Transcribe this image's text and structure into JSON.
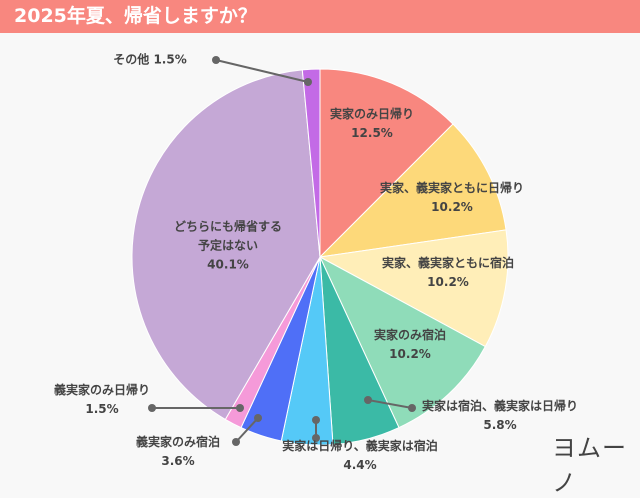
{
  "title": "2025年夏、帰省しますか？",
  "logo": "ヨムーノ",
  "chart_data": {
    "type": "pie",
    "title": "2025年夏、帰省しますか？",
    "start": "top",
    "direction": "clockwise",
    "slices": [
      {
        "label": "実家のみ日帰り",
        "value": 12.5,
        "display": "12.5%",
        "color": "#f8877f"
      },
      {
        "label": "実家、義実家ともに日帰り",
        "value": 10.2,
        "display": "10.2%",
        "color": "#fdd97a"
      },
      {
        "label": "実家、義実家ともに宿泊",
        "value": 10.2,
        "display": "10.2%",
        "color": "#ffeeb8"
      },
      {
        "label": "実家のみ宿泊",
        "value": 10.2,
        "display": "10.2%",
        "color": "#8fdcb9"
      },
      {
        "label": "実家は宿泊、義実家は日帰り",
        "value": 5.8,
        "display": "5.8%",
        "color": "#3bbaa6"
      },
      {
        "label": "実家は日帰り、義実家は宿泊",
        "value": 4.4,
        "display": "4.4%",
        "color": "#55c9f7"
      },
      {
        "label": "義実家のみ宿泊",
        "value": 3.6,
        "display": "3.6%",
        "color": "#4f6ff7"
      },
      {
        "label": "義実家のみ日帰り",
        "value": 1.5,
        "display": "1.5%",
        "color": "#f59ad9"
      },
      {
        "label": "どちらにも帰省する予定はない",
        "value": 40.1,
        "display": "40.1%",
        "color": "#c5a8d6"
      },
      {
        "label": "その他",
        "value": 1.5,
        "display": "1.5%",
        "color": "#c36ae6"
      }
    ]
  }
}
